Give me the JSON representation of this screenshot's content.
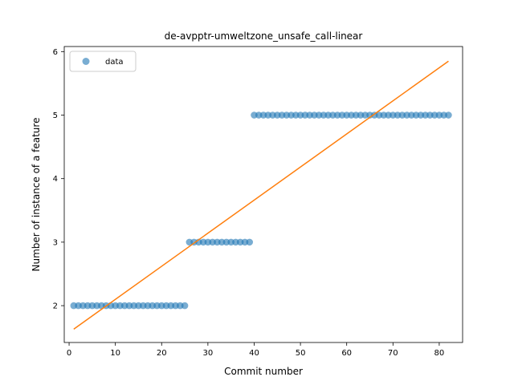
{
  "chart_data": {
    "type": "scatter",
    "title": "de-avpptr-umweltzone_unsafe_call-linear",
    "xlabel": "Commit number",
    "ylabel": "Number of instance of a feature",
    "xlim": [
      -1.05,
      85.05
    ],
    "ylim": [
      1.42,
      6.08
    ],
    "xticks": [
      0,
      10,
      20,
      30,
      40,
      50,
      60,
      70,
      80
    ],
    "yticks": [
      2,
      3,
      4,
      5,
      6
    ],
    "grid": false,
    "legend": {
      "entries": [
        "data"
      ],
      "placement": "top-left"
    },
    "colors": {
      "data": "#1f77b4",
      "fit": "#ff7f0e"
    },
    "series": [
      {
        "name": "data",
        "kind": "scatter",
        "x": [
          1,
          2,
          3,
          4,
          5,
          6,
          7,
          8,
          9,
          10,
          11,
          12,
          13,
          14,
          15,
          16,
          17,
          18,
          19,
          20,
          21,
          22,
          23,
          24,
          25,
          26,
          27,
          28,
          29,
          30,
          31,
          32,
          33,
          34,
          35,
          36,
          37,
          38,
          39,
          40,
          41,
          42,
          43,
          44,
          45,
          46,
          47,
          48,
          49,
          50,
          51,
          52,
          53,
          54,
          55,
          56,
          57,
          58,
          59,
          60,
          61,
          62,
          63,
          64,
          65,
          66,
          67,
          68,
          69,
          70,
          71,
          72,
          73,
          74,
          75,
          76,
          77,
          78,
          79,
          80,
          81,
          82
        ],
        "y": [
          2,
          2,
          2,
          2,
          2,
          2,
          2,
          2,
          2,
          2,
          2,
          2,
          2,
          2,
          2,
          2,
          2,
          2,
          2,
          2,
          2,
          2,
          2,
          2,
          2,
          3,
          3,
          3,
          3,
          3,
          3,
          3,
          3,
          3,
          3,
          3,
          3,
          3,
          3,
          5,
          5,
          5,
          5,
          5,
          5,
          5,
          5,
          5,
          5,
          5,
          5,
          5,
          5,
          5,
          5,
          5,
          5,
          5,
          5,
          5,
          5,
          5,
          5,
          5,
          5,
          5,
          5,
          5,
          5,
          5,
          5,
          5,
          5,
          5,
          5,
          5,
          5,
          5,
          5,
          5,
          5,
          5
        ]
      },
      {
        "kind": "line",
        "x": [
          1,
          82
        ],
        "y": [
          1.63,
          5.85
        ]
      }
    ]
  }
}
